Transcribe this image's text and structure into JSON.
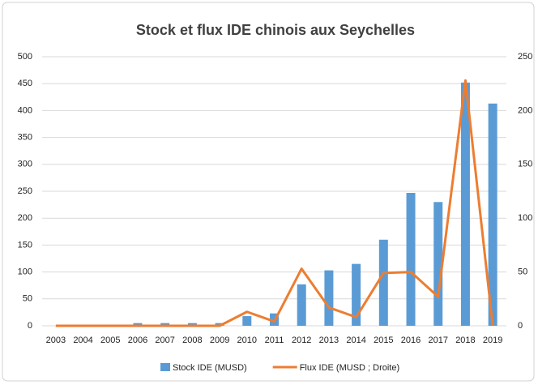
{
  "chart_data": {
    "type": "bar",
    "title": "Stock et flux IDE chinois aux Seychelles",
    "categories": [
      "2003",
      "2004",
      "2005",
      "2006",
      "2007",
      "2008",
      "2009",
      "2010",
      "2011",
      "2012",
      "2013",
      "2014",
      "2015",
      "2016",
      "2017",
      "2018",
      "2019"
    ],
    "series": [
      {
        "name": "Stock IDE (MUSD)",
        "type": "bar",
        "color": "#5b9bd5",
        "values": [
          0,
          0,
          0,
          5,
          5,
          5,
          5,
          18,
          23,
          77,
          103,
          115,
          160,
          247,
          230,
          452,
          413
        ]
      },
      {
        "name": "Flux IDE (MUSD ; Droite)",
        "type": "line",
        "axis": "y2",
        "color": "#ed7d31",
        "values": [
          0,
          0,
          0,
          0,
          0,
          0,
          0,
          13,
          4,
          53,
          17,
          8,
          49,
          50,
          27,
          228,
          0
        ]
      }
    ],
    "ylim": [
      0,
      500
    ],
    "yticks": [
      0,
      50,
      100,
      150,
      200,
      250,
      300,
      350,
      400,
      450,
      500
    ],
    "y2lim": [
      0,
      250
    ],
    "y2ticks": [
      0,
      50,
      100,
      150,
      200,
      250
    ],
    "grid": true,
    "legend": "bottom"
  }
}
